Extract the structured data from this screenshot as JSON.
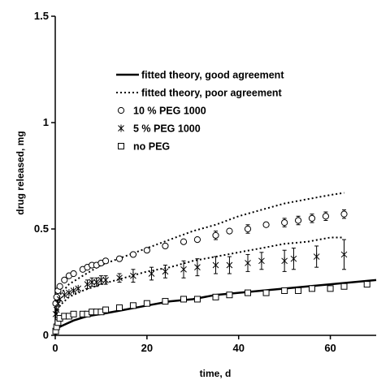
{
  "chart_data": {
    "type": "scatter",
    "title": "",
    "xlabel": "time, d",
    "ylabel": "drug released, mg",
    "xlim": [
      0,
      70
    ],
    "ylim": [
      0,
      1.5
    ],
    "x_ticks": [
      0,
      20,
      40,
      60
    ],
    "y_ticks": [
      0,
      0.5,
      1,
      1.5
    ],
    "x_tick_labels": [
      "0",
      "20",
      "40",
      "60"
    ],
    "y_tick_labels": [
      "0",
      "0.5",
      "1",
      "1.5"
    ],
    "grid": false,
    "legend_position": "top-right",
    "legend": [
      {
        "label": "fitted theory, good agreement",
        "style": "solid-line"
      },
      {
        "label": "fitted theory, poor agreement",
        "style": "dotted-line"
      },
      {
        "label": "10 % PEG 1000",
        "style": "open-circle"
      },
      {
        "label": "5 % PEG 1000",
        "style": "asterisk"
      },
      {
        "label": "no PEG",
        "style": "open-square"
      }
    ],
    "series": [
      {
        "name": "10 % PEG 1000",
        "marker": "circle",
        "x": [
          0.1,
          0.3,
          0.6,
          1,
          2,
          3,
          4,
          6,
          7,
          8,
          9,
          10,
          11,
          14,
          17,
          20,
          24,
          28,
          31,
          35,
          38,
          42,
          46,
          50,
          53,
          56,
          59,
          63
        ],
        "y": [
          0.15,
          0.18,
          0.21,
          0.23,
          0.26,
          0.28,
          0.29,
          0.31,
          0.32,
          0.33,
          0.33,
          0.34,
          0.35,
          0.36,
          0.38,
          0.4,
          0.42,
          0.44,
          0.45,
          0.47,
          0.49,
          0.5,
          0.52,
          0.53,
          0.54,
          0.55,
          0.56,
          0.57
        ],
        "error": [
          0,
          0,
          0,
          0,
          0,
          0,
          0,
          0,
          0,
          0,
          0,
          0,
          0,
          0,
          0,
          0,
          0,
          0,
          0,
          0.02,
          0,
          0.02,
          0,
          0.02,
          0.02,
          0.02,
          0.02,
          0.02
        ]
      },
      {
        "name": "5 % PEG 1000",
        "marker": "asterisk",
        "x": [
          0.1,
          0.3,
          0.6,
          1,
          2,
          3,
          4,
          5,
          7,
          8,
          9,
          10,
          11,
          14,
          17,
          21,
          24,
          28,
          31,
          35,
          38,
          42,
          45,
          50,
          52,
          57,
          63
        ],
        "y": [
          0.1,
          0.12,
          0.15,
          0.17,
          0.19,
          0.2,
          0.21,
          0.22,
          0.24,
          0.25,
          0.25,
          0.26,
          0.26,
          0.27,
          0.28,
          0.29,
          0.3,
          0.31,
          0.32,
          0.33,
          0.33,
          0.34,
          0.35,
          0.35,
          0.36,
          0.37,
          0.38
        ],
        "error": [
          0,
          0,
          0,
          0,
          0,
          0,
          0,
          0,
          0.02,
          0.02,
          0.02,
          0.02,
          0.02,
          0.02,
          0.03,
          0.03,
          0.03,
          0.04,
          0.04,
          0.04,
          0.04,
          0.04,
          0.04,
          0.05,
          0.05,
          0.05,
          0.07
        ]
      },
      {
        "name": "no PEG",
        "marker": "square",
        "x": [
          0.1,
          0.3,
          0.6,
          1,
          2,
          3,
          4,
          6,
          7,
          8,
          9,
          10,
          11,
          14,
          17,
          20,
          24,
          28,
          31,
          35,
          38,
          42,
          46,
          50,
          53,
          56,
          60,
          63,
          68
        ],
        "y": [
          0.02,
          0.04,
          0.06,
          0.08,
          0.09,
          0.09,
          0.1,
          0.1,
          0.1,
          0.11,
          0.11,
          0.11,
          0.12,
          0.13,
          0.14,
          0.15,
          0.16,
          0.17,
          0.17,
          0.18,
          0.19,
          0.2,
          0.2,
          0.21,
          0.21,
          0.22,
          0.22,
          0.23,
          0.24
        ]
      }
    ],
    "fits": [
      {
        "label": "fitted theory, poor agreement",
        "style": "dotted",
        "x": [
          0,
          1,
          3,
          6,
          10,
          15,
          20,
          25,
          30,
          35,
          40,
          45,
          50,
          55,
          60,
          63
        ],
        "y": [
          0.12,
          0.19,
          0.24,
          0.28,
          0.33,
          0.37,
          0.41,
          0.45,
          0.49,
          0.52,
          0.56,
          0.59,
          0.62,
          0.64,
          0.66,
          0.67
        ]
      },
      {
        "label": "fitted theory, poor agreement",
        "style": "dotted",
        "x": [
          0,
          1,
          3,
          6,
          10,
          15,
          20,
          25,
          30,
          35,
          40,
          45,
          50,
          55,
          60,
          63
        ],
        "y": [
          0.08,
          0.14,
          0.18,
          0.21,
          0.24,
          0.27,
          0.3,
          0.32,
          0.35,
          0.37,
          0.39,
          0.41,
          0.43,
          0.44,
          0.46,
          0.46
        ]
      },
      {
        "label": "fitted theory, good agreement",
        "style": "solid",
        "x": [
          0,
          0.5,
          1,
          2,
          4,
          7,
          10,
          15,
          20,
          25,
          30,
          35,
          40,
          45,
          50,
          55,
          60,
          65,
          70
        ],
        "y": [
          0.0,
          0.03,
          0.04,
          0.05,
          0.07,
          0.09,
          0.1,
          0.12,
          0.14,
          0.16,
          0.17,
          0.19,
          0.2,
          0.21,
          0.22,
          0.23,
          0.24,
          0.25,
          0.26
        ]
      }
    ]
  }
}
